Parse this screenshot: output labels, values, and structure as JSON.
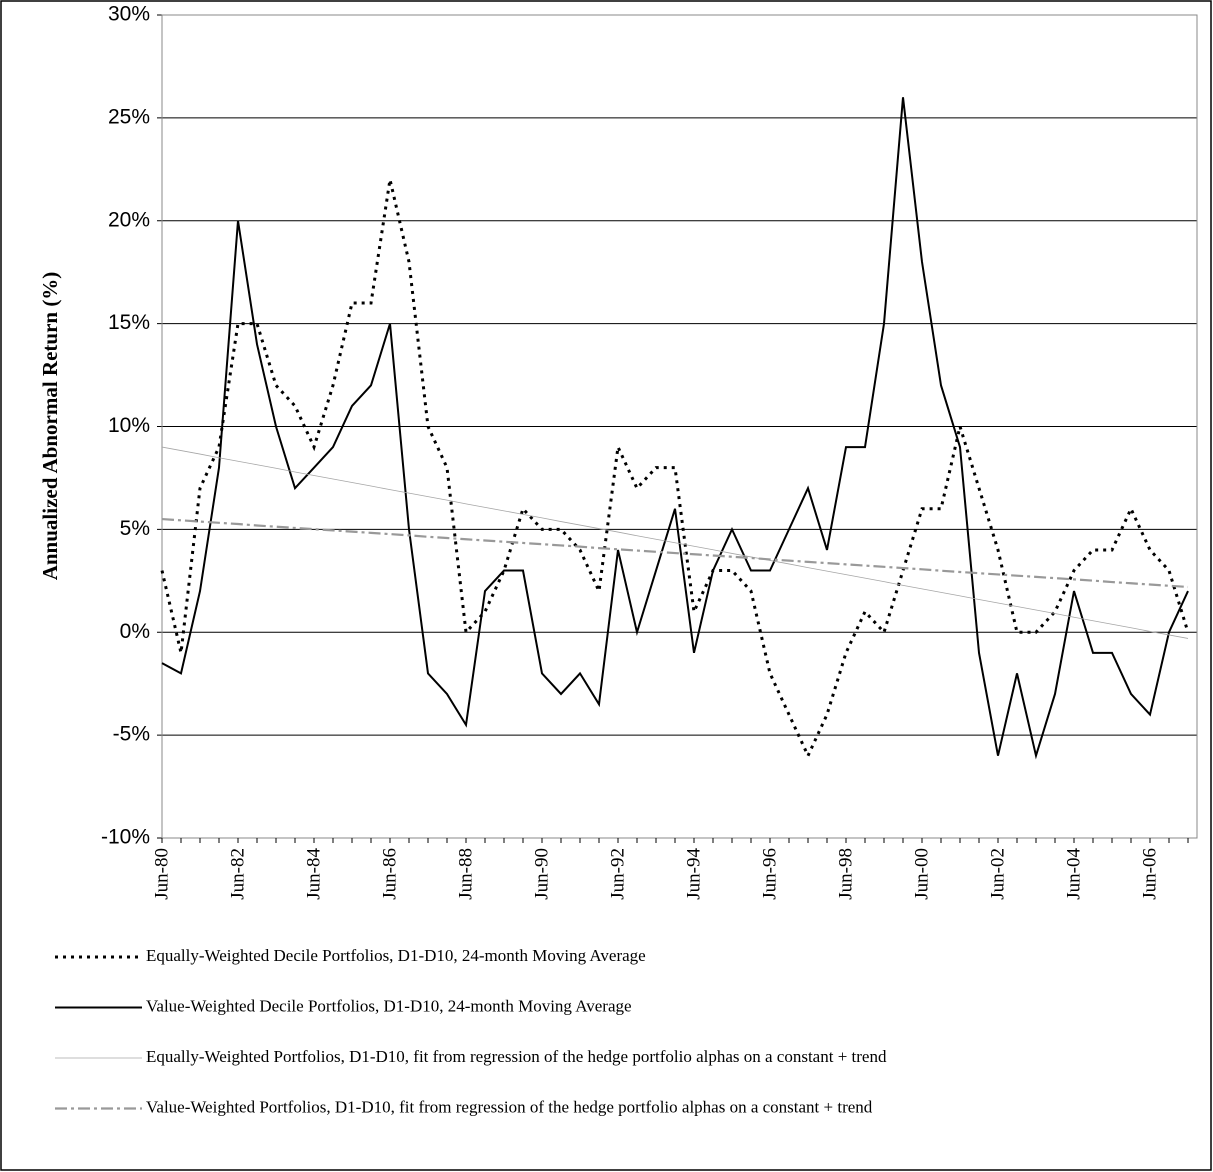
{
  "chart_data": {
    "type": "line",
    "y_label": "Annualized Abnormal Return (%)",
    "categories": [
      "Jun-80",
      null,
      null,
      null,
      "Jun-82",
      null,
      null,
      null,
      "Jun-84",
      null,
      null,
      null,
      "Jun-86",
      null,
      null,
      null,
      "Jun-88",
      null,
      null,
      null,
      "Jun-90",
      null,
      null,
      null,
      "Jun-92",
      null,
      null,
      null,
      "Jun-94",
      null,
      null,
      null,
      "Jun-96",
      null,
      null,
      null,
      "Jun-98",
      null,
      null,
      null,
      "Jun-00",
      null,
      null,
      null,
      "Jun-02",
      null,
      null,
      null,
      "Jun-04",
      null,
      null,
      null,
      "Jun-06",
      null,
      null
    ],
    "ylim": [
      -10,
      30
    ],
    "yticks": [
      {
        "value": -10,
        "label": "-10%"
      },
      {
        "value": -5,
        "label": "-5%"
      },
      {
        "value": 0,
        "label": "0%"
      },
      {
        "value": 5,
        "label": "5%"
      },
      {
        "value": 10,
        "label": "10%"
      },
      {
        "value": 15,
        "label": "15%"
      },
      {
        "value": 20,
        "label": "20%"
      },
      {
        "value": 25,
        "label": "25%"
      },
      {
        "value": 30,
        "label": "30%"
      }
    ],
    "grid": true,
    "series": [
      {
        "name": "Equally-Weighted Decile Portfolios, D1-D10, 24-month Moving Average",
        "color": "#000000",
        "style": "dotted",
        "values": [
          3,
          -1,
          7,
          9,
          15,
          15,
          12,
          11,
          9,
          12,
          16,
          16,
          22,
          18,
          10,
          8,
          0,
          1,
          3,
          6,
          5,
          5,
          4,
          2,
          9,
          7,
          8,
          8,
          1,
          3,
          3,
          2,
          -2,
          -4,
          -6,
          -4,
          -1,
          1,
          0,
          3,
          6,
          6,
          10,
          7,
          4,
          0,
          0,
          1,
          3,
          4,
          4,
          6,
          4,
          3,
          0
        ]
      },
      {
        "name": "Value-Weighted Decile Portfolios, D1-D10, 24-month Moving Average",
        "color": "#000000",
        "style": "solid",
        "values": [
          -1.5,
          -2,
          2,
          8,
          20,
          14,
          10,
          7,
          8,
          9,
          11,
          12,
          15,
          5,
          -2,
          -3,
          -4.5,
          2,
          3,
          3,
          -2,
          -3,
          -2,
          -3.5,
          4,
          0,
          3,
          6,
          -1,
          3,
          5,
          3,
          3,
          5,
          7,
          4,
          9,
          9,
          15,
          26,
          18,
          12,
          9,
          -1,
          -6,
          -2,
          -6,
          -3,
          2,
          -1,
          -1,
          -3,
          -4,
          0,
          2
        ]
      },
      {
        "name": "Equally-Weighted Portfolios, D1-D10, fit from regression of the hedge portfolio alphas on a constant + trend",
        "color": "#a6a6a6",
        "style": "thin",
        "values": [
          9,
          8.83,
          8.66,
          8.48,
          8.31,
          8.14,
          7.97,
          7.79,
          7.62,
          7.45,
          7.28,
          7.11,
          6.93,
          6.76,
          6.59,
          6.42,
          6.24,
          6.07,
          5.9,
          5.73,
          5.56,
          5.38,
          5.21,
          5.04,
          4.87,
          4.69,
          4.52,
          4.35,
          4.18,
          4.01,
          3.83,
          3.66,
          3.49,
          3.32,
          3.14,
          2.97,
          2.8,
          2.63,
          2.46,
          2.28,
          2.11,
          1.94,
          1.77,
          1.59,
          1.42,
          1.25,
          1.08,
          0.91,
          0.73,
          0.56,
          0.39,
          0.22,
          0.04,
          -0.13,
          -0.3
        ]
      },
      {
        "name": "Value-Weighted Portfolios, D1-D10, fit from regression of the hedge portfolio alphas on a constant + trend",
        "color": "#999999",
        "style": "dash-dot",
        "values": [
          5.5,
          5.44,
          5.38,
          5.32,
          5.26,
          5.19,
          5.13,
          5.07,
          5.01,
          4.95,
          4.89,
          4.83,
          4.77,
          4.71,
          4.64,
          4.58,
          4.52,
          4.46,
          4.4,
          4.34,
          4.28,
          4.22,
          4.16,
          4.09,
          4.03,
          3.97,
          3.91,
          3.85,
          3.79,
          3.73,
          3.67,
          3.61,
          3.54,
          3.48,
          3.42,
          3.36,
          3.3,
          3.24,
          3.18,
          3.12,
          3.06,
          2.99,
          2.93,
          2.87,
          2.81,
          2.75,
          2.69,
          2.63,
          2.57,
          2.51,
          2.44,
          2.38,
          2.32,
          2.26,
          2.2
        ]
      }
    ]
  }
}
